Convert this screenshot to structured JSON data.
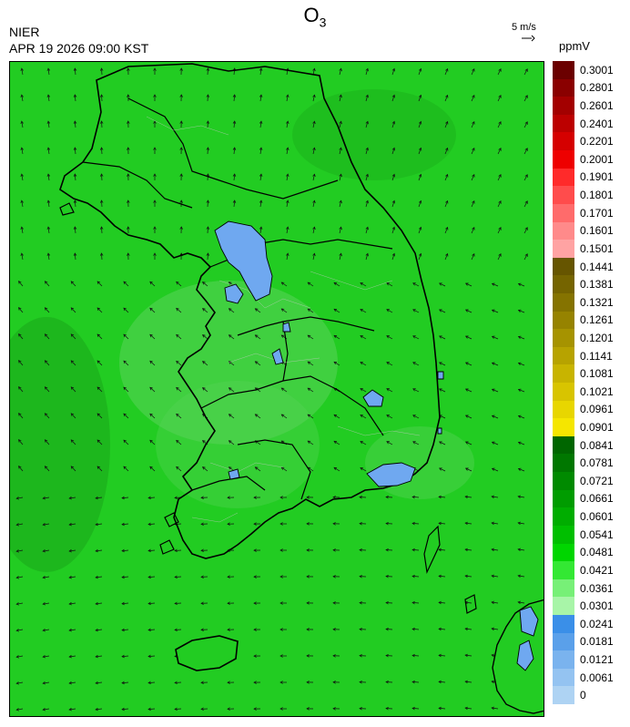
{
  "header": {
    "title_main": "O",
    "title_sub": "3",
    "organization": "NIER",
    "timestamp": "APR 19 2026 09:00 KST",
    "vector_scale_label": "5 m/s",
    "unit": "ppmV"
  },
  "map": {
    "region": "Korean Peninsula",
    "background_color": "#22cc22",
    "hotspot_color": "#6fa8f0",
    "boundary_color": "#000000",
    "wind_arrow_color": "#111111"
  },
  "legend": {
    "levels": [
      {
        "label": "0.3001",
        "color": "#6b0000"
      },
      {
        "label": "0.2801",
        "color": "#8a0000"
      },
      {
        "label": "0.2601",
        "color": "#a30000"
      },
      {
        "label": "0.2401",
        "color": "#bc0000"
      },
      {
        "label": "0.2201",
        "color": "#d50000"
      },
      {
        "label": "0.2001",
        "color": "#ee0000"
      },
      {
        "label": "0.1901",
        "color": "#ff2a2a"
      },
      {
        "label": "0.1801",
        "color": "#ff4c4c"
      },
      {
        "label": "0.1701",
        "color": "#ff6b6b"
      },
      {
        "label": "0.1601",
        "color": "#ff8a8a"
      },
      {
        "label": "0.1501",
        "color": "#ffa3a3"
      },
      {
        "label": "0.1441",
        "color": "#665500"
      },
      {
        "label": "0.1381",
        "color": "#756400"
      },
      {
        "label": "0.1321",
        "color": "#857300"
      },
      {
        "label": "0.1261",
        "color": "#968300"
      },
      {
        "label": "0.1201",
        "color": "#a69300"
      },
      {
        "label": "0.1141",
        "color": "#b7a300"
      },
      {
        "label": "0.1081",
        "color": "#c8b400"
      },
      {
        "label": "0.1021",
        "color": "#d8c400"
      },
      {
        "label": "0.0961",
        "color": "#e8d600"
      },
      {
        "label": "0.0901",
        "color": "#f5e600"
      },
      {
        "label": "0.0841",
        "color": "#006600"
      },
      {
        "label": "0.0781",
        "color": "#007700"
      },
      {
        "label": "0.0721",
        "color": "#008a00"
      },
      {
        "label": "0.0661",
        "color": "#009c00"
      },
      {
        "label": "0.0601",
        "color": "#00ad00"
      },
      {
        "label": "0.0541",
        "color": "#00bf00"
      },
      {
        "label": "0.0481",
        "color": "#00d600"
      },
      {
        "label": "0.0421",
        "color": "#33e833"
      },
      {
        "label": "0.0361",
        "color": "#77f077"
      },
      {
        "label": "0.0301",
        "color": "#a8f5a8"
      },
      {
        "label": "0.0241",
        "color": "#3a8fe8"
      },
      {
        "label": "0.0181",
        "color": "#5aa0ea"
      },
      {
        "label": "0.0121",
        "color": "#7ab3ee"
      },
      {
        "label": "0.0061",
        "color": "#94c3f1"
      },
      {
        "label": "0",
        "color": "#aed3f3"
      }
    ]
  }
}
